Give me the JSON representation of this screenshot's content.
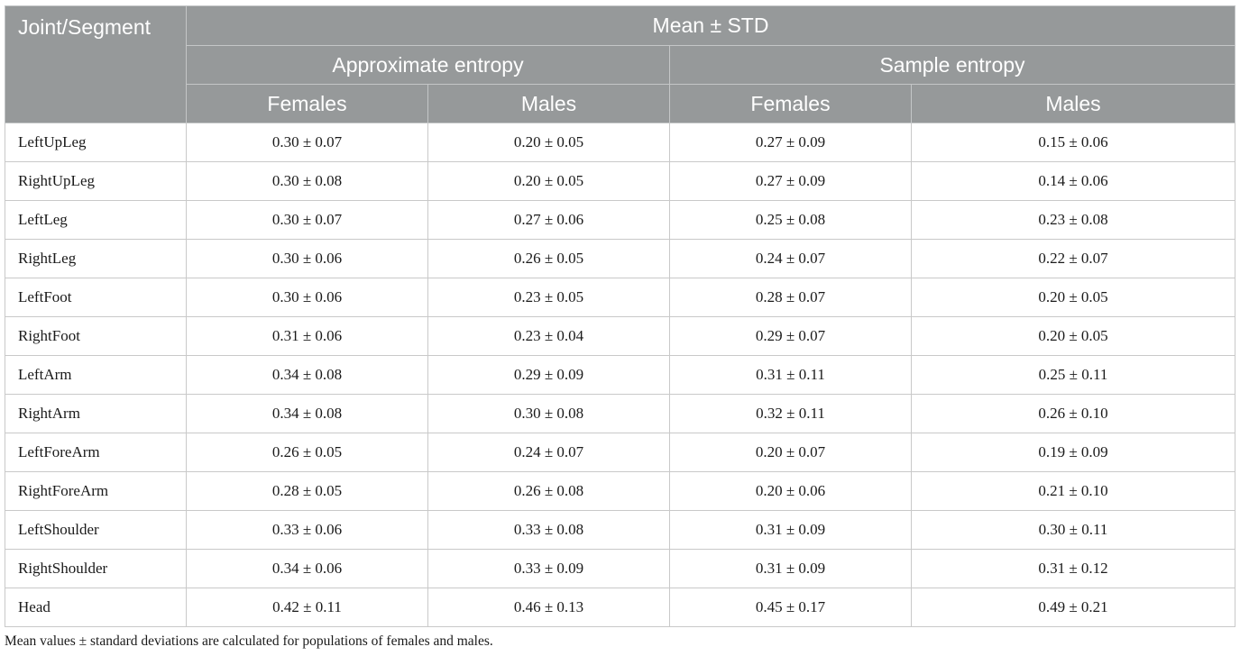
{
  "header": {
    "segment_label": "Joint/Segment",
    "mean_std_label": "Mean ± STD",
    "group_approx": "Approximate entropy",
    "group_sample": "Sample entropy",
    "sub_labels": [
      "Females",
      "Males",
      "Females",
      "Males"
    ]
  },
  "rows": [
    {
      "segment": "LeftUpLeg",
      "values": [
        "0.30 ± 0.07",
        "0.20 ± 0.05",
        "0.27 ± 0.09",
        "0.15 ± 0.06"
      ]
    },
    {
      "segment": "RightUpLeg",
      "values": [
        "0.30 ± 0.08",
        "0.20 ± 0.05",
        "0.27 ± 0.09",
        "0.14 ± 0.06"
      ]
    },
    {
      "segment": "LeftLeg",
      "values": [
        "0.30 ± 0.07",
        "0.27 ± 0.06",
        "0.25 ± 0.08",
        "0.23 ± 0.08"
      ]
    },
    {
      "segment": "RightLeg",
      "values": [
        "0.30 ± 0.06",
        "0.26 ± 0.05",
        "0.24 ± 0.07",
        "0.22 ± 0.07"
      ]
    },
    {
      "segment": "LeftFoot",
      "values": [
        "0.30 ± 0.06",
        "0.23 ± 0.05",
        "0.28 ± 0.07",
        "0.20 ± 0.05"
      ]
    },
    {
      "segment": "RightFoot",
      "values": [
        "0.31 ± 0.06",
        "0.23 ± 0.04",
        "0.29 ± 0.07",
        "0.20 ± 0.05"
      ]
    },
    {
      "segment": "LeftArm",
      "values": [
        "0.34 ± 0.08",
        "0.29 ± 0.09",
        "0.31 ± 0.11",
        "0.25 ± 0.11"
      ]
    },
    {
      "segment": "RightArm",
      "values": [
        "0.34 ± 0.08",
        "0.30 ± 0.08",
        "0.32 ± 0.11",
        "0.26 ± 0.10"
      ]
    },
    {
      "segment": "LeftForeArm",
      "values": [
        "0.26 ± 0.05",
        "0.24 ± 0.07",
        "0.20 ± 0.07",
        "0.19 ± 0.09"
      ]
    },
    {
      "segment": "RightForeArm",
      "values": [
        "0.28 ± 0.05",
        "0.26 ± 0.08",
        "0.20 ± 0.06",
        "0.21 ± 0.10"
      ]
    },
    {
      "segment": "LeftShoulder",
      "values": [
        "0.33 ± 0.06",
        "0.33 ± 0.08",
        "0.31 ± 0.09",
        "0.30 ± 0.11"
      ]
    },
    {
      "segment": "RightShoulder",
      "values": [
        "0.34 ± 0.06",
        "0.33 ± 0.09",
        "0.31 ± 0.09",
        "0.31 ± 0.12"
      ]
    },
    {
      "segment": "Head",
      "values": [
        "0.42 ± 0.11",
        "0.46 ± 0.13",
        "0.45 ± 0.17",
        "0.49 ± 0.21"
      ]
    }
  ],
  "footnote": "Mean values ± standard deviations are calculated for populations of females and males.",
  "colors": {
    "header_bg": "#96999a",
    "header_text": "#ffffff",
    "border": "#c9c9c9"
  }
}
